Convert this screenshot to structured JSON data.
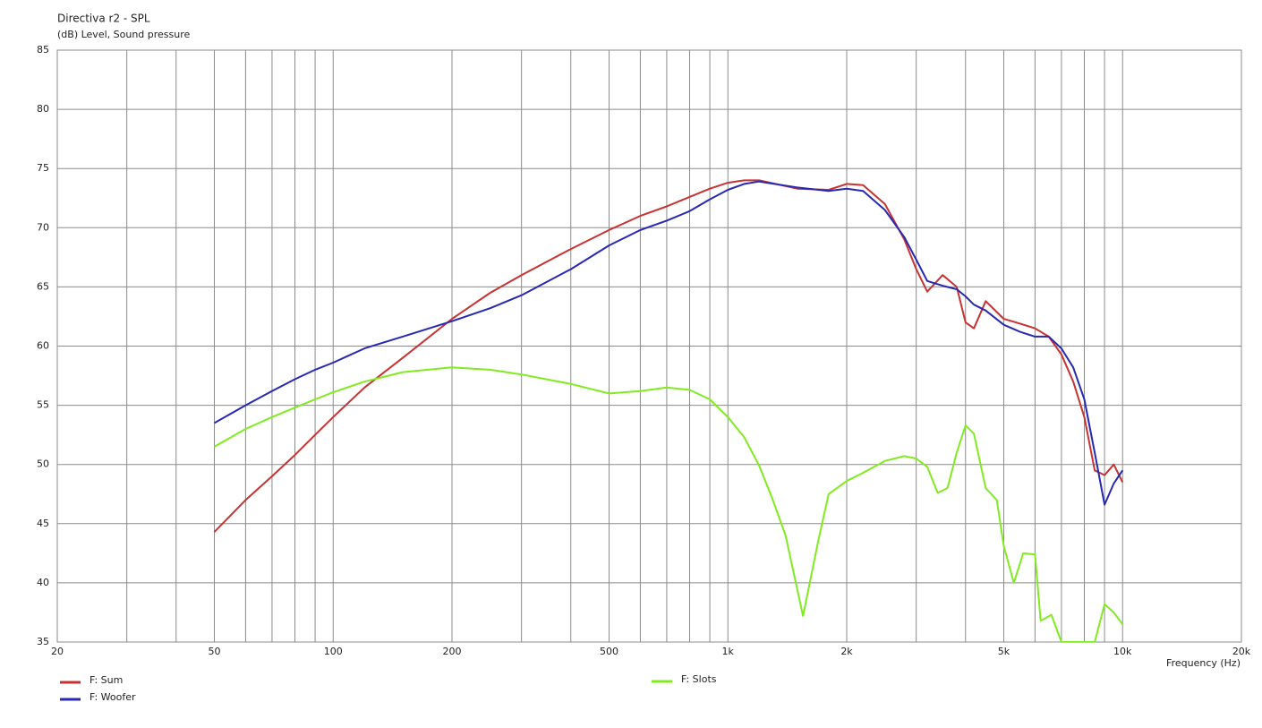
{
  "chart_data": {
    "type": "line",
    "title": "Directiva r2 - SPL",
    "subtitle": "(dB)  Level, Sound pressure",
    "x_label": "Frequency  (Hz)",
    "x_log_scale": true,
    "grid": true,
    "xlim": [
      20,
      20000
    ],
    "ylim": [
      35,
      85
    ],
    "xticks": [
      20,
      50,
      100,
      200,
      500,
      {
        "value": 1000,
        "label": "1k"
      },
      {
        "value": 2000,
        "label": "2k"
      },
      {
        "value": 5000,
        "label": "5k"
      },
      {
        "value": 10000,
        "label": "10k"
      },
      {
        "value": 20000,
        "label": "20k"
      }
    ],
    "x_minor_ticks": [
      30,
      40,
      60,
      70,
      80,
      90,
      300,
      400,
      600,
      700,
      800,
      900,
      3000,
      4000,
      6000,
      7000,
      8000,
      9000
    ],
    "yticks": [
      35,
      40,
      45,
      50,
      55,
      60,
      65,
      70,
      75,
      80,
      85
    ],
    "series": [
      {
        "name": "F: Sum",
        "color": "#c83232",
        "x": [
          50,
          60,
          70,
          80,
          90,
          100,
          120,
          150,
          200,
          250,
          300,
          400,
          500,
          600,
          700,
          800,
          900,
          1000,
          1100,
          1200,
          1500,
          1800,
          2000,
          2200,
          2500,
          2800,
          3000,
          3200,
          3500,
          3800,
          4000,
          4200,
          4500,
          5000,
          5500,
          6000,
          6500,
          7000,
          7500,
          8000,
          8500,
          9000,
          9500,
          10000
        ],
        "values": [
          44.3,
          47,
          49,
          50.8,
          52.5,
          54,
          56.5,
          59,
          62.3,
          64.5,
          66,
          68.2,
          69.8,
          71,
          71.8,
          72.6,
          73.3,
          73.8,
          74,
          74,
          73.3,
          73.2,
          73.7,
          73.6,
          72,
          69,
          66.5,
          64.6,
          66,
          65,
          62,
          61.5,
          63.8,
          62.3,
          61.9,
          61.5,
          60.8,
          59.3,
          57,
          54,
          49.5,
          49.1,
          50,
          48.5
        ]
      },
      {
        "name": "F: Woofer",
        "color": "#2828b4",
        "x": [
          50,
          60,
          70,
          80,
          90,
          100,
          120,
          150,
          200,
          250,
          300,
          400,
          500,
          600,
          700,
          800,
          900,
          1000,
          1100,
          1200,
          1500,
          1800,
          2000,
          2200,
          2500,
          2800,
          3000,
          3200,
          3500,
          3800,
          4000,
          4200,
          4500,
          5000,
          5500,
          6000,
          6500,
          7000,
          7500,
          8000,
          8500,
          9000,
          9500,
          10000
        ],
        "values": [
          53.5,
          55,
          56.2,
          57.2,
          58,
          58.6,
          59.8,
          60.8,
          62.1,
          63.2,
          64.3,
          66.5,
          68.5,
          69.8,
          70.6,
          71.4,
          72.4,
          73.2,
          73.7,
          73.9,
          73.4,
          73.1,
          73.3,
          73.1,
          71.5,
          69.2,
          67.3,
          65.5,
          65.1,
          64.8,
          64.2,
          63.5,
          63,
          61.8,
          61.2,
          60.8,
          60.8,
          59.8,
          58.2,
          55.5,
          51,
          46.6,
          48.4,
          49.5
        ]
      },
      {
        "name": "F: Slots",
        "color": "#80ec20",
        "x": [
          50,
          60,
          70,
          80,
          90,
          100,
          120,
          150,
          200,
          250,
          300,
          400,
          500,
          600,
          700,
          800,
          900,
          1000,
          1100,
          1200,
          1300,
          1400,
          1550,
          1700,
          1800,
          2000,
          2200,
          2500,
          2800,
          3000,
          3200,
          3400,
          3600,
          3800,
          4000,
          4200,
          4500,
          4800,
          5000,
          5300,
          5600,
          6000,
          6200,
          6600,
          7000,
          7500,
          8000,
          8500,
          9000,
          9500,
          10000
        ],
        "values": [
          51.5,
          53,
          54,
          54.8,
          55.5,
          56.1,
          57,
          57.8,
          58.2,
          58,
          57.6,
          56.8,
          56,
          56.2,
          56.5,
          56.3,
          55.5,
          54,
          52.3,
          49.9,
          47,
          44,
          37.2,
          43.8,
          47.5,
          48.6,
          49.3,
          50.3,
          50.7,
          50.5,
          49.8,
          47.6,
          48,
          51,
          53.3,
          52.6,
          48,
          47,
          43.1,
          40,
          42.5,
          42.4,
          36.8,
          37.3,
          35,
          35,
          35,
          35,
          38.2,
          37.5,
          36.5
        ]
      }
    ]
  }
}
